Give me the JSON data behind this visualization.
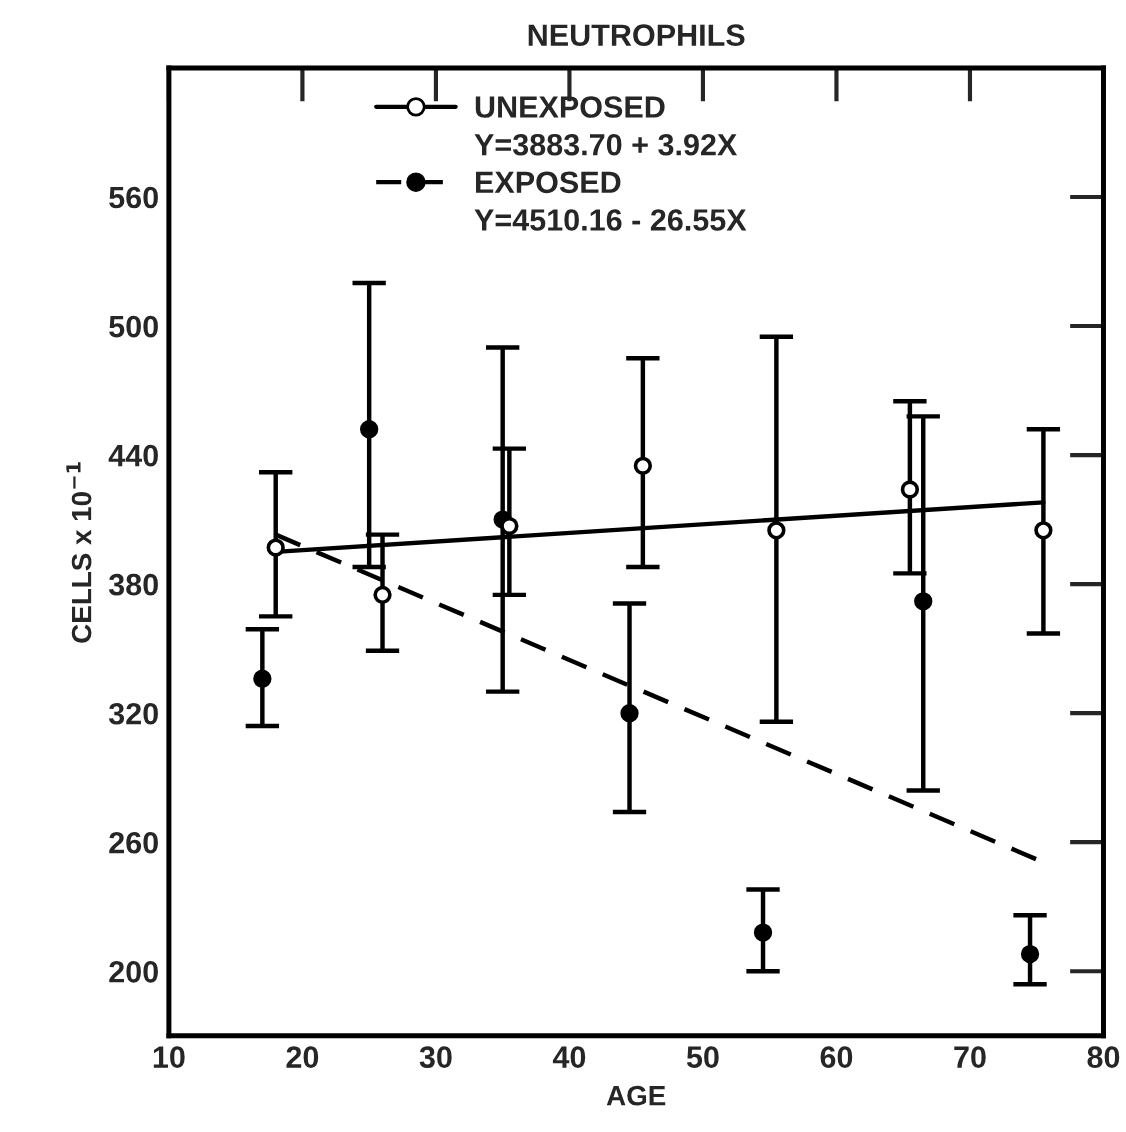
{
  "chart_data": {
    "type": "scatter",
    "title": "NEUTROPHILS",
    "xlabel": "AGE",
    "ylabel": "CELLS x 10$^{−1}$",
    "xlim": [
      10,
      80
    ],
    "xticks": [
      10,
      20,
      30,
      40,
      50,
      60,
      70,
      80
    ],
    "ylim": [
      170,
      620
    ],
    "yticks": [
      200,
      260,
      320,
      380,
      440,
      500,
      560
    ],
    "grid": false,
    "legend": "top",
    "annotations": [
      "Y=3883.70 + 3.92X",
      "Y=4510.16 - 26.55X"
    ],
    "series": [
      {
        "name": "UNEXPOSED",
        "color": "#ffffff",
        "marker": "circle",
        "line_style": "solid",
        "x": [
          18,
          26,
          35.5,
          45.5,
          55.5,
          65.5,
          75.5
        ],
        "values": [
          397,
          375,
          407,
          435,
          405,
          424,
          405
        ],
        "errors": [
          [
            365,
            432
          ],
          [
            349,
            403
          ],
          [
            375,
            443
          ],
          [
            388,
            485
          ],
          [
            316,
            495
          ],
          [
            385,
            465
          ],
          [
            357,
            452
          ]
        ]
      },
      {
        "name": "EXPOSED",
        "color": "#000000",
        "marker": "circle",
        "line_style": "dashed",
        "x": [
          17,
          25,
          35,
          44.5,
          54.5,
          66.5,
          74.5
        ],
        "values": [
          336,
          452,
          410,
          320,
          218,
          372,
          208
        ],
        "errors": [
          [
            314,
            359
          ],
          [
            388,
            520
          ],
          [
            330,
            490
          ],
          [
            274,
            371
          ],
          [
            200,
            238
          ],
          [
            284,
            458
          ],
          [
            194,
            226
          ]
        ]
      },
      {
        "type": "line",
        "color": "#000000",
        "line_style": "solid",
        "x": [
          18,
          75.5
        ],
        "values": [
          395,
          418
        ]
      },
      {
        "type": "line",
        "color": "#000000",
        "line_style": "dashed",
        "x": [
          18,
          75
        ],
        "values": [
          403,
          252
        ]
      }
    ]
  }
}
